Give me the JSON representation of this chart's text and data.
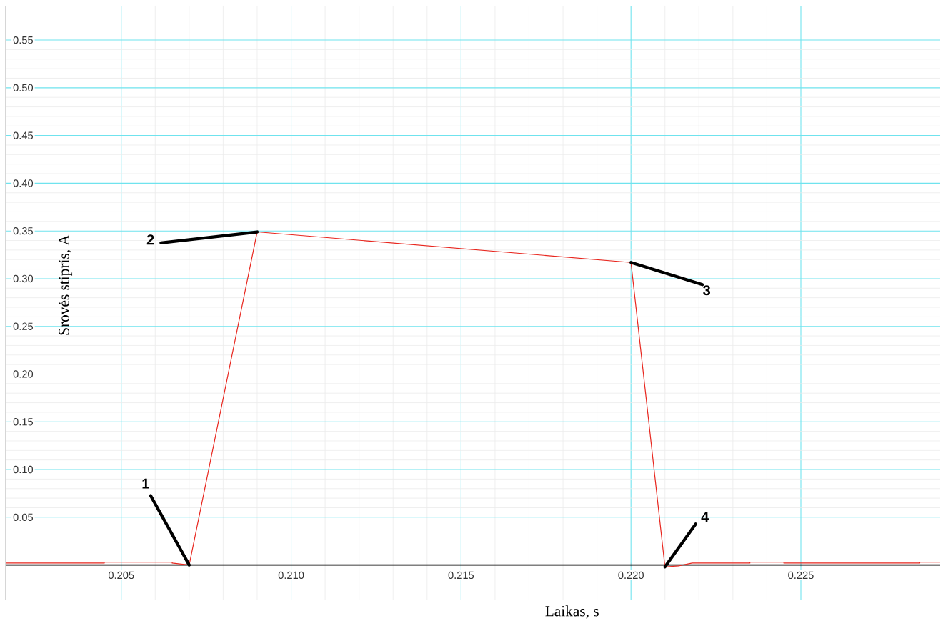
{
  "chart_data": {
    "type": "line",
    "xlabel": "Laikas, s",
    "ylabel": "Srovės stipris, A",
    "xlim": [
      0.2016,
      0.2291
    ],
    "ylim": [
      -0.037,
      0.586
    ],
    "xticks": [
      0.205,
      {
        "value": 0.21,
        "label": "0.210"
      },
      0.215,
      {
        "value": 0.22,
        "label": "0.220"
      },
      0.225
    ],
    "yticks": [
      0.05,
      {
        "value": 0.1,
        "label": "0.10"
      },
      0.15,
      {
        "value": 0.2,
        "label": "0.20"
      },
      0.25,
      {
        "value": 0.3,
        "label": "0.30"
      },
      0.35,
      {
        "value": 0.4,
        "label": "0.40"
      },
      0.45,
      {
        "value": 0.5,
        "label": "0.50"
      },
      0.55
    ],
    "grid": true,
    "marker": "none",
    "line_style": "solid",
    "series": [
      {
        "color": "#e8261e",
        "x": [
          0.2016,
          0.2045,
          0.2045,
          0.2065,
          0.2065,
          0.207,
          0.209,
          0.22,
          0.221,
          0.2214,
          0.2218,
          0.2235,
          0.2235,
          0.2245,
          0.2245,
          0.2285,
          0.2285,
          0.2291
        ],
        "values": [
          0.002,
          0.002,
          0.003,
          0.003,
          0.002,
          0,
          0.349,
          0.317,
          -0.002,
          -0.001,
          0.002,
          0.002,
          0.003,
          0.003,
          0.002,
          0.002,
          0.003,
          0.003
        ]
      }
    ],
    "annotations": [
      {
        "text": "1",
        "x": 0.207,
        "y": 0
      },
      {
        "text": "2",
        "x": 0.209,
        "y": 0.349
      },
      {
        "text": "3",
        "x": 0.22,
        "y": 0.317
      },
      {
        "text": "4",
        "x": 0.221,
        "y": -0.002
      }
    ]
  }
}
